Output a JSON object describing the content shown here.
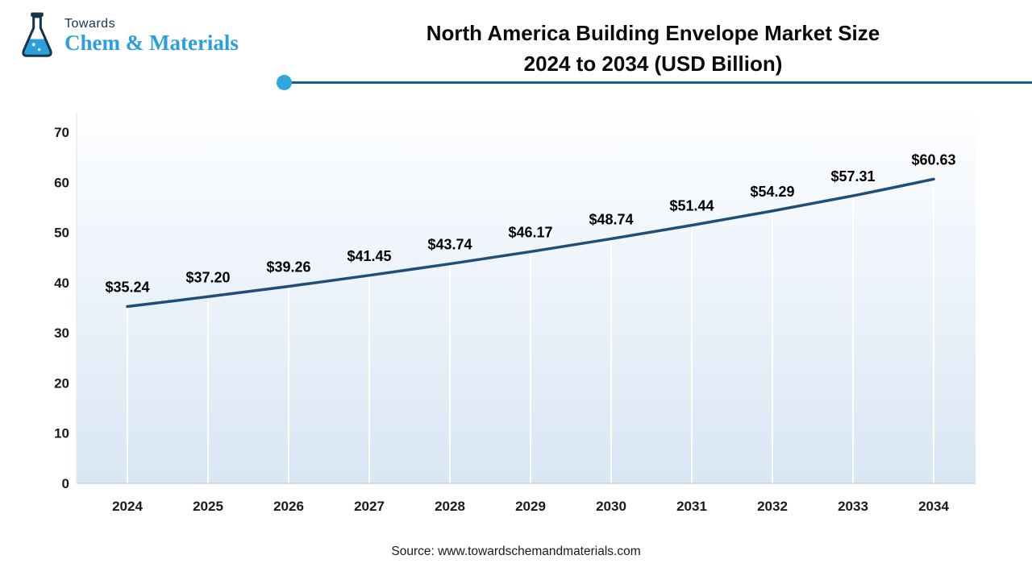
{
  "logo": {
    "brand_top": "Towards",
    "brand_name": "Chem & Materials"
  },
  "header": {
    "title_line1": "North America Building Envelope Market Size",
    "title_line2": "2024 to 2034 (USD Billion)"
  },
  "footer": {
    "source": "Source: www.towardschemandmaterials.com"
  },
  "colors": {
    "line": "#1f4e79",
    "accent_dot": "#2ea8dc",
    "header_rule": "#1a5c8f",
    "plot_bg_top": "#fdfeff",
    "plot_bg_bottom": "#d9e6f4",
    "drop_line": "#ffffff",
    "brand_blue": "#2ca0d8",
    "brand_navy": "#15344f"
  },
  "chart_data": {
    "type": "line",
    "title": "North America Building Envelope Market Size 2024 to 2034 (USD Billion)",
    "unit": "USD Billion",
    "categories": [
      "2024",
      "2025",
      "2026",
      "2027",
      "2028",
      "2029",
      "2030",
      "2031",
      "2032",
      "2033",
      "2034"
    ],
    "values": [
      35.24,
      37.2,
      39.26,
      41.45,
      43.74,
      46.17,
      48.74,
      51.44,
      54.29,
      57.31,
      60.63
    ],
    "labels": [
      "$35.24",
      "$37.20",
      "$39.26",
      "$41.45",
      "$43.74",
      "$46.17",
      "$48.74",
      "$51.44",
      "$54.29",
      "$57.31",
      "$60.63"
    ],
    "ylim": [
      0,
      70
    ],
    "yticks": [
      0,
      10,
      20,
      30,
      40,
      50,
      60,
      70
    ],
    "grid": false,
    "legend": "none"
  }
}
